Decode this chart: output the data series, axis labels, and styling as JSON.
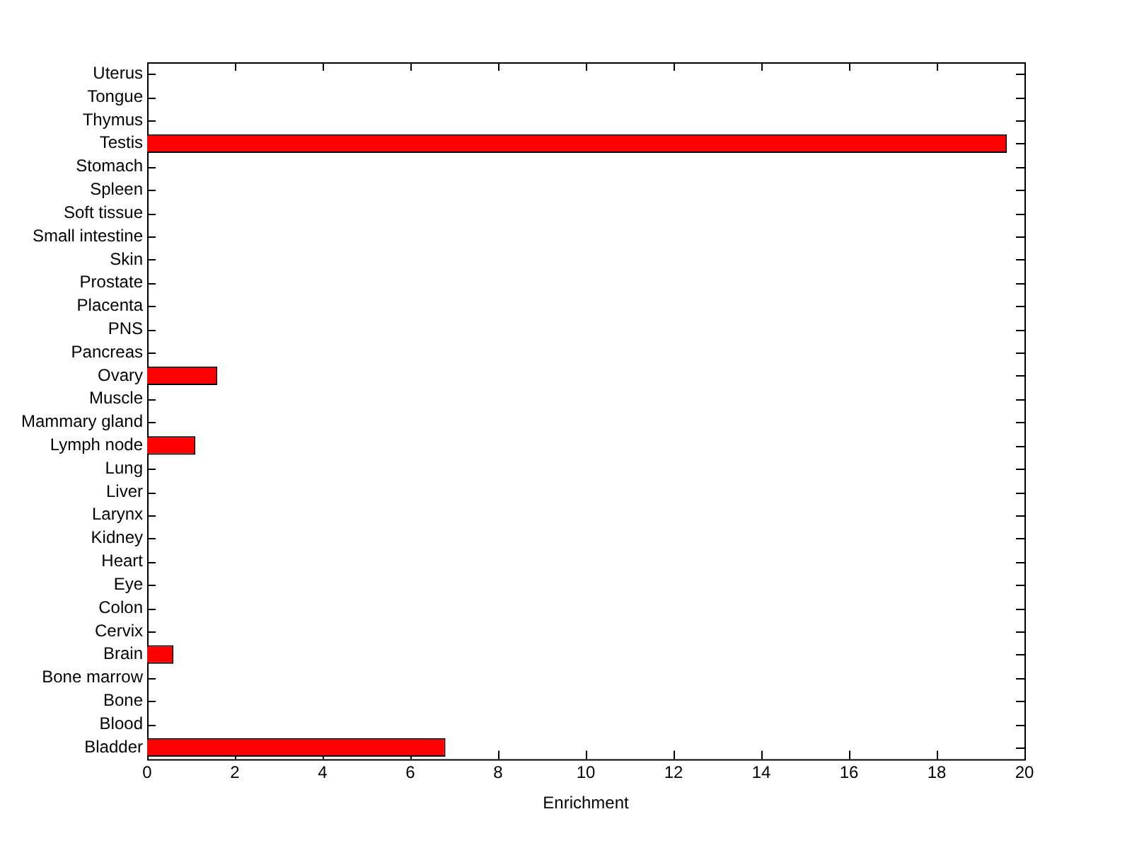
{
  "chart_data": {
    "type": "bar",
    "orientation": "horizontal",
    "xlabel": "Enrichment",
    "categories": [
      "Uterus",
      "Tongue",
      "Thymus",
      "Testis",
      "Stomach",
      "Spleen",
      "Soft tissue",
      "Small intestine",
      "Skin",
      "Prostate",
      "Placenta",
      "PNS",
      "Pancreas",
      "Ovary",
      "Muscle",
      "Mammary gland",
      "Lymph node",
      "Lung",
      "Liver",
      "Larynx",
      "Kidney",
      "Heart",
      "Eye",
      "Colon",
      "Cervix",
      "Brain",
      "Bone marrow",
      "Bone",
      "Blood",
      "Bladder"
    ],
    "values": [
      0,
      0,
      0,
      19.6,
      0,
      0,
      0,
      0,
      0,
      0,
      0,
      0,
      0,
      1.6,
      0,
      0,
      1.1,
      0,
      0,
      0,
      0,
      0,
      0,
      0,
      0,
      0.6,
      0,
      0,
      0,
      6.8
    ],
    "color": "#ff0000",
    "xlim": [
      0,
      20
    ],
    "xticks": [
      0,
      2,
      4,
      6,
      8,
      10,
      12,
      14,
      16,
      18,
      20
    ],
    "grid": false,
    "legend": false
  }
}
